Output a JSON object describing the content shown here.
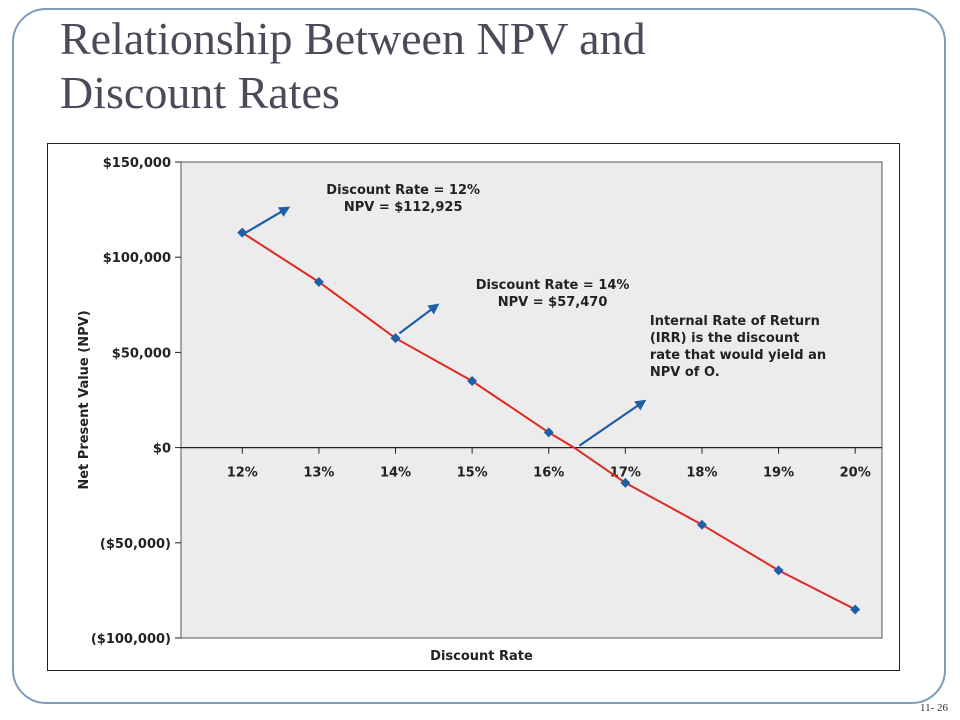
{
  "slide": {
    "title": "Relationship Between NPV and Discount Rates",
    "page_number": "11- 26"
  },
  "chart_data": {
    "type": "line",
    "title": "",
    "xlabel": "Discount Rate",
    "ylabel": "Net Present Value (NPV)",
    "categories": [
      "12%",
      "13%",
      "14%",
      "15%",
      "16%",
      "17%",
      "18%",
      "19%",
      "20%"
    ],
    "x": [
      12,
      13,
      14,
      15,
      16,
      17,
      18,
      19,
      20
    ],
    "y": [
      112925,
      87000,
      57470,
      35000,
      8000,
      -18500,
      -40500,
      -64500,
      -85000
    ],
    "yticks": [
      "$150,000",
      "$100,000",
      "$50,000",
      "$0",
      "($50,000)",
      "($100,000)"
    ],
    "ytick_values": [
      150000,
      100000,
      50000,
      0,
      -50000,
      -100000
    ],
    "ylim": [
      -100000,
      150000
    ],
    "irr_crossing_x": 16.33,
    "grid": false,
    "colors": {
      "line": "#e0281e",
      "marker": "#1f5fa8",
      "arrow": "#1f5fa8",
      "plot_bg": "#ececec"
    },
    "annotations": [
      {
        "lines": [
          "Discount Rate = 12%",
          "NPV = $112,925"
        ],
        "arrow_from": [
          12.05,
          113000
        ],
        "arrow_to": [
          12.6,
          126000
        ]
      },
      {
        "lines": [
          "Discount Rate = 14%",
          "NPV = $57,470"
        ],
        "arrow_from": [
          14.05,
          60000
        ],
        "arrow_to": [
          14.55,
          75000
        ]
      },
      {
        "lines": [
          "Internal Rate of Return",
          "(IRR) is the discount",
          "rate that would yield an",
          "NPV of O."
        ],
        "arrow_from": [
          16.4,
          1000
        ],
        "arrow_to": [
          17.25,
          24500
        ]
      }
    ]
  }
}
